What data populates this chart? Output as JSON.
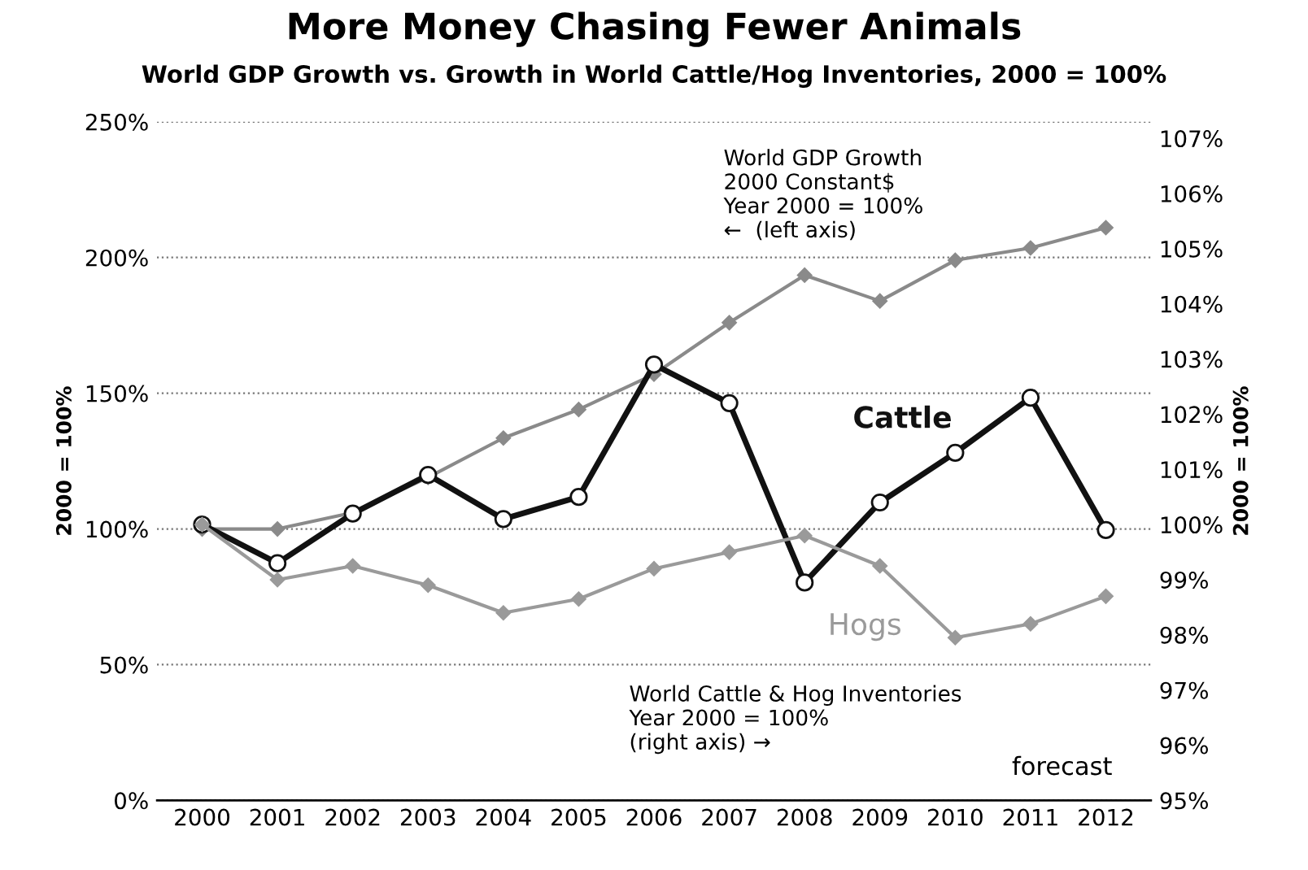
{
  "chart_data": {
    "type": "line",
    "title": "More Money Chasing Fewer Animals",
    "subtitle": "World GDP Growth vs. Growth in World Cattle/Hog Inventories, 2000 = 100%",
    "ylabel": "2000 = 100%",
    "y2label": "2000 = 100%",
    "categories": [
      "2000",
      "2001",
      "2002",
      "2003",
      "2004",
      "2005",
      "2006",
      "2007",
      "2008",
      "2009",
      "2010",
      "2011",
      "2012"
    ],
    "series": [
      {
        "color": "#8a8a8a",
        "marker": "diamond",
        "values": [
          100,
          100,
          106,
          119,
          133.5,
          144,
          157,
          176,
          193.5,
          184,
          199,
          203.5,
          211
        ]
      },
      {
        "name": "Cattle",
        "color": "#111111",
        "marker": "circle",
        "axis": "y2",
        "values": [
          100,
          99.3,
          100.2,
          100.9,
          100.1,
          100.5,
          102.9,
          102.2,
          98.95,
          100.4,
          101.3,
          102.3,
          99.9
        ]
      },
      {
        "name": "Hogs",
        "color": "#9a9a9a",
        "marker": "diamond",
        "axis": "y2",
        "values": [
          100,
          99.0,
          99.25,
          98.9,
          98.4,
          98.65,
          99.2,
          99.5,
          99.8,
          99.25,
          97.95,
          98.2,
          98.7
        ]
      }
    ],
    "ylim": [
      0,
      250
    ],
    "yticks": [
      {
        "value": 0,
        "label": "0%"
      },
      {
        "value": 50,
        "label": "50%"
      },
      {
        "value": 100,
        "label": "100%"
      },
      {
        "value": 150,
        "label": "150%"
      },
      {
        "value": 200,
        "label": "200%"
      },
      {
        "value": 250,
        "label": "250%"
      }
    ],
    "y2lim": [
      95,
      107.3
    ],
    "y2ticks": [
      {
        "value": 95,
        "label": "95%"
      },
      {
        "value": 96,
        "label": "96%"
      },
      {
        "value": 97,
        "label": "97%"
      },
      {
        "value": 98,
        "label": "98%"
      },
      {
        "value": 99,
        "label": "99%"
      },
      {
        "value": 100,
        "label": "100%"
      },
      {
        "value": 101,
        "label": "101%"
      },
      {
        "value": 102,
        "label": "102%"
      },
      {
        "value": 103,
        "label": "103%"
      },
      {
        "value": 104,
        "label": "104%"
      },
      {
        "value": 105,
        "label": "105%"
      },
      {
        "value": 106,
        "label": "106%"
      },
      {
        "value": 107,
        "label": "107%"
      }
    ],
    "grid": "y",
    "legend": false,
    "line_style": "solid",
    "annotations": [
      "World GDP Growth\n2000 Constant$\nYear 2000 = 100%\n←  (left axis)",
      "World Cattle & Hog Inventories\nYear 2000 = 100%\n(right axis) →",
      "forecast"
    ]
  }
}
